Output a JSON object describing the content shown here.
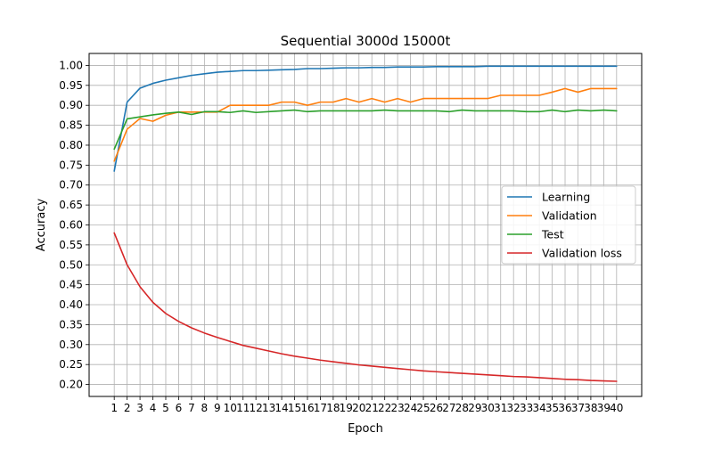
{
  "chart_data": {
    "type": "line",
    "title": "Sequential 3000d 15000t",
    "xlabel": "Epoch",
    "ylabel": "Accuracy",
    "x": [
      1,
      2,
      3,
      4,
      5,
      6,
      7,
      8,
      9,
      10,
      11,
      12,
      13,
      14,
      15,
      16,
      17,
      18,
      19,
      20,
      21,
      22,
      23,
      24,
      25,
      26,
      27,
      28,
      29,
      30,
      31,
      32,
      33,
      34,
      35,
      36,
      37,
      38,
      39,
      40
    ],
    "xticks": [
      "1",
      "2",
      "3",
      "4",
      "5",
      "6",
      "7",
      "8",
      "9",
      "10",
      "11",
      "12",
      "13",
      "14",
      "15",
      "16",
      "17",
      "18",
      "19",
      "20",
      "21",
      "22",
      "23",
      "24",
      "25",
      "26",
      "27",
      "28",
      "29",
      "30",
      "31",
      "32",
      "33",
      "34",
      "35",
      "36",
      "37",
      "38",
      "39",
      "40"
    ],
    "xlim": [
      -0.95,
      41.95
    ],
    "ylim": [
      0.17,
      1.03
    ],
    "yticks": [
      "0.20",
      "0.25",
      "0.30",
      "0.35",
      "0.40",
      "0.45",
      "0.50",
      "0.55",
      "0.60",
      "0.65",
      "0.70",
      "0.75",
      "0.80",
      "0.85",
      "0.90",
      "0.95",
      "1.00"
    ],
    "ytick_values": [
      0.2,
      0.25,
      0.3,
      0.35,
      0.4,
      0.45,
      0.5,
      0.55,
      0.6,
      0.65,
      0.7,
      0.75,
      0.8,
      0.85,
      0.9,
      0.95,
      1.0
    ],
    "grid": true,
    "legend_position": "center-right",
    "series": [
      {
        "name": "Learning",
        "color": "#1f77b4",
        "values": [
          0.735,
          0.908,
          0.943,
          0.955,
          0.963,
          0.969,
          0.975,
          0.979,
          0.983,
          0.985,
          0.987,
          0.987,
          0.988,
          0.989,
          0.99,
          0.992,
          0.992,
          0.993,
          0.994,
          0.994,
          0.995,
          0.995,
          0.996,
          0.996,
          0.996,
          0.997,
          0.997,
          0.997,
          0.997,
          0.998,
          0.998,
          0.998,
          0.998,
          0.998,
          0.998,
          0.998,
          0.998,
          0.998,
          0.998,
          0.998
        ]
      },
      {
        "name": "Validation",
        "color": "#ff7f0e",
        "values": [
          0.76,
          0.84,
          0.867,
          0.86,
          0.875,
          0.883,
          0.883,
          0.883,
          0.883,
          0.9,
          0.9,
          0.9,
          0.9,
          0.908,
          0.908,
          0.9,
          0.908,
          0.908,
          0.917,
          0.908,
          0.917,
          0.908,
          0.917,
          0.908,
          0.917,
          0.917,
          0.917,
          0.917,
          0.917,
          0.917,
          0.925,
          0.925,
          0.925,
          0.925,
          0.933,
          0.942,
          0.933,
          0.942,
          0.942,
          0.942
        ]
      },
      {
        "name": "Test",
        "color": "#2ca02c",
        "values": [
          0.79,
          0.866,
          0.871,
          0.876,
          0.88,
          0.883,
          0.877,
          0.884,
          0.884,
          0.882,
          0.886,
          0.882,
          0.884,
          0.886,
          0.888,
          0.884,
          0.886,
          0.886,
          0.886,
          0.886,
          0.886,
          0.888,
          0.886,
          0.886,
          0.886,
          0.886,
          0.884,
          0.888,
          0.886,
          0.886,
          0.886,
          0.886,
          0.884,
          0.884,
          0.888,
          0.884,
          0.888,
          0.886,
          0.888,
          0.886
        ]
      },
      {
        "name": "Validation loss",
        "color": "#d62728",
        "values": [
          0.58,
          0.5,
          0.445,
          0.406,
          0.378,
          0.358,
          0.342,
          0.329,
          0.318,
          0.308,
          0.298,
          0.291,
          0.284,
          0.277,
          0.271,
          0.266,
          0.261,
          0.257,
          0.253,
          0.249,
          0.246,
          0.243,
          0.24,
          0.237,
          0.234,
          0.232,
          0.23,
          0.228,
          0.226,
          0.224,
          0.222,
          0.22,
          0.219,
          0.217,
          0.215,
          0.213,
          0.212,
          0.21,
          0.209,
          0.208
        ]
      }
    ]
  }
}
